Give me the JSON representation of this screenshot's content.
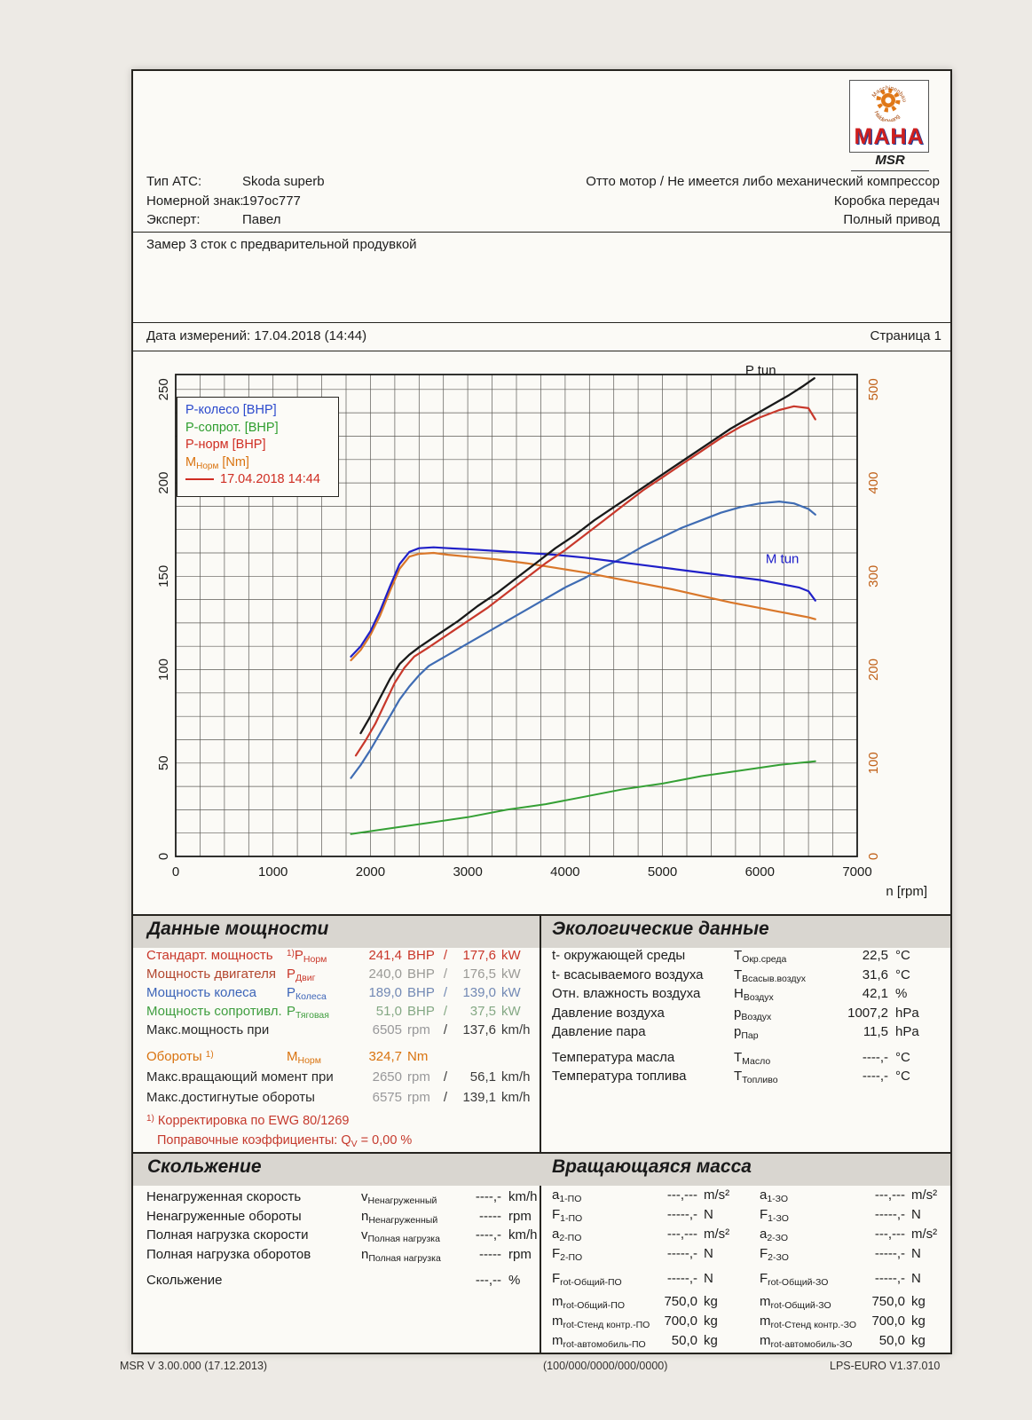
{
  "header": {
    "logo": {
      "brand": "MAHA",
      "sub": "MSR",
      "ring_top": "Maschinenbau",
      "ring_bottom": "Haldenwang"
    },
    "rows": [
      {
        "label": "Тип АТС:",
        "value": "Skoda superb",
        "right": "Отто мотор / Не имеется либо механический компрессор"
      },
      {
        "label": "Номерной знак:",
        "value": "197ос777",
        "right": "Коробка передач"
      },
      {
        "label": "Эксперт:",
        "value": "Павел",
        "right": "Полный привод"
      }
    ],
    "note": "Замер 3 сток с предварительной продувкой",
    "date_line": "Дата измерений: 17.04.2018 (14:44)",
    "page_label": "Страница 1"
  },
  "chart": {
    "legend_entries": [
      {
        "pre": "P-колесо [BHP]",
        "sub": "",
        "post": "",
        "color": "#2b49cc"
      },
      {
        "pre": "P-сопрот. [BHP]",
        "sub": "",
        "post": "",
        "color": "#2e9e2e"
      },
      {
        "pre": "P-норм [BHP]",
        "sub": "",
        "post": "",
        "color": "#cf2d22"
      },
      {
        "pre": "M",
        "sub": "Норм",
        "post": " [Nm]",
        "color": "#d9730f"
      }
    ],
    "legend_date": {
      "text": "17.04.2018 14:44",
      "color": "#cf2d22"
    }
  },
  "chart_data": {
    "type": "line",
    "title": "",
    "xlabel": "n [rpm]",
    "x_ticks": [
      0,
      1000,
      2000,
      3000,
      4000,
      5000,
      6000,
      7000
    ],
    "y_left_ticks": [
      0,
      50,
      100,
      150,
      200,
      250
    ],
    "y_right_ticks": [
      0,
      100,
      200,
      300,
      400,
      500
    ],
    "xlim": [
      0,
      7000
    ],
    "ylim_left": [
      0,
      258
    ],
    "ylim_right": [
      0,
      516
    ],
    "grid_step_x": 250,
    "grid_step_y": 12.5,
    "grid_on": true,
    "right_axis_color": "#c06018",
    "legend_position": "top-left",
    "series": [
      {
        "name": "P-drag",
        "label": "P-сопрот.",
        "unit": "BHP",
        "axis": "left",
        "color": "#35a035",
        "width": 2,
        "points": [
          [
            1800,
            12
          ],
          [
            2200,
            15
          ],
          [
            2600,
            18
          ],
          [
            3000,
            21
          ],
          [
            3400,
            25
          ],
          [
            3800,
            28
          ],
          [
            4200,
            32
          ],
          [
            4600,
            36
          ],
          [
            5000,
            39
          ],
          [
            5400,
            43
          ],
          [
            5800,
            46
          ],
          [
            6200,
            49
          ],
          [
            6570,
            51
          ]
        ]
      },
      {
        "name": "P-wheel",
        "label": "P-колесо",
        "unit": "BHP",
        "axis": "left",
        "color": "#3f6cb3",
        "width": 2.2,
        "points": [
          [
            1800,
            42
          ],
          [
            1900,
            49
          ],
          [
            2000,
            57
          ],
          [
            2100,
            66
          ],
          [
            2200,
            75
          ],
          [
            2300,
            84
          ],
          [
            2400,
            91
          ],
          [
            2500,
            97
          ],
          [
            2600,
            102
          ],
          [
            2800,
            108
          ],
          [
            3000,
            114
          ],
          [
            3200,
            120
          ],
          [
            3400,
            126
          ],
          [
            3600,
            132
          ],
          [
            3800,
            138
          ],
          [
            4000,
            144
          ],
          [
            4200,
            149
          ],
          [
            4400,
            155
          ],
          [
            4600,
            160
          ],
          [
            4800,
            166
          ],
          [
            5000,
            171
          ],
          [
            5200,
            176
          ],
          [
            5400,
            180
          ],
          [
            5600,
            184
          ],
          [
            5800,
            187
          ],
          [
            6000,
            189
          ],
          [
            6200,
            190
          ],
          [
            6350,
            189
          ],
          [
            6500,
            186
          ],
          [
            6570,
            183
          ]
        ]
      },
      {
        "name": "M-norm",
        "label": "M Норм",
        "unit": "Nm",
        "axis": "right",
        "color": "#d9772a",
        "width": 2.2,
        "points": [
          [
            1800,
            210
          ],
          [
            1900,
            221
          ],
          [
            2000,
            237
          ],
          [
            2100,
            258
          ],
          [
            2200,
            284
          ],
          [
            2300,
            308
          ],
          [
            2400,
            321
          ],
          [
            2500,
            324
          ],
          [
            2650,
            325
          ],
          [
            2800,
            323
          ],
          [
            3000,
            321
          ],
          [
            3300,
            318
          ],
          [
            3600,
            314
          ],
          [
            3900,
            309
          ],
          [
            4200,
            304
          ],
          [
            4500,
            298
          ],
          [
            4800,
            292
          ],
          [
            5100,
            286
          ],
          [
            5400,
            279
          ],
          [
            5700,
            272
          ],
          [
            6000,
            266
          ],
          [
            6200,
            262
          ],
          [
            6400,
            258
          ],
          [
            6500,
            256
          ],
          [
            6570,
            254
          ]
        ]
      },
      {
        "name": "M-tun",
        "label": "M tun",
        "unit": "Nm",
        "axis": "right",
        "color": "#2020c8",
        "width": 2.2,
        "points": [
          [
            1800,
            214
          ],
          [
            1900,
            225
          ],
          [
            2000,
            241
          ],
          [
            2100,
            263
          ],
          [
            2200,
            289
          ],
          [
            2300,
            313
          ],
          [
            2400,
            326
          ],
          [
            2500,
            330
          ],
          [
            2650,
            331
          ],
          [
            2800,
            330
          ],
          [
            3000,
            329
          ],
          [
            3300,
            327
          ],
          [
            3600,
            325
          ],
          [
            3900,
            323
          ],
          [
            4200,
            320
          ],
          [
            4500,
            316
          ],
          [
            4800,
            312
          ],
          [
            5100,
            308
          ],
          [
            5400,
            304
          ],
          [
            5700,
            300
          ],
          [
            6000,
            296
          ],
          [
            6200,
            292
          ],
          [
            6400,
            288
          ],
          [
            6500,
            284
          ],
          [
            6570,
            274
          ]
        ]
      },
      {
        "name": "P-norm",
        "label": "P-норм",
        "unit": "BHP",
        "axis": "left",
        "color": "#c8382b",
        "width": 2.2,
        "points": [
          [
            1850,
            54
          ],
          [
            1950,
            62
          ],
          [
            2050,
            71
          ],
          [
            2150,
            82
          ],
          [
            2250,
            93
          ],
          [
            2350,
            101
          ],
          [
            2450,
            107
          ],
          [
            2600,
            112
          ],
          [
            2800,
            119
          ],
          [
            3000,
            126
          ],
          [
            3200,
            133
          ],
          [
            3400,
            141
          ],
          [
            3600,
            149
          ],
          [
            3800,
            157
          ],
          [
            4000,
            164
          ],
          [
            4200,
            172
          ],
          [
            4400,
            180
          ],
          [
            4600,
            188
          ],
          [
            4800,
            196
          ],
          [
            5000,
            203
          ],
          [
            5200,
            210
          ],
          [
            5400,
            217
          ],
          [
            5600,
            224
          ],
          [
            5800,
            230
          ],
          [
            6000,
            235
          ],
          [
            6200,
            239
          ],
          [
            6350,
            241
          ],
          [
            6500,
            240
          ],
          [
            6570,
            234
          ]
        ]
      },
      {
        "name": "P-tun",
        "label": "P tun",
        "unit": "BHP",
        "axis": "left",
        "color": "#191919",
        "width": 2.3,
        "points": [
          [
            1900,
            66
          ],
          [
            2000,
            75
          ],
          [
            2100,
            85
          ],
          [
            2200,
            95
          ],
          [
            2300,
            103
          ],
          [
            2400,
            108
          ],
          [
            2500,
            112
          ],
          [
            2700,
            119
          ],
          [
            2900,
            126
          ],
          [
            3100,
            134
          ],
          [
            3300,
            141
          ],
          [
            3500,
            149
          ],
          [
            3700,
            157
          ],
          [
            3900,
            165
          ],
          [
            4100,
            172
          ],
          [
            4300,
            180
          ],
          [
            4500,
            187
          ],
          [
            4700,
            194
          ],
          [
            4900,
            201
          ],
          [
            5100,
            208
          ],
          [
            5300,
            215
          ],
          [
            5500,
            222
          ],
          [
            5700,
            229
          ],
          [
            5900,
            235
          ],
          [
            6100,
            241
          ],
          [
            6300,
            247
          ],
          [
            6450,
            252
          ],
          [
            6560,
            256
          ]
        ]
      }
    ],
    "annotations": [
      {
        "text": "P tun",
        "x": 5850,
        "y": 258,
        "axis": "left",
        "color": "#191919"
      },
      {
        "text": "M tun",
        "x": 6060,
        "y": 157,
        "axis": "left",
        "color": "#1b1bc8"
      }
    ]
  },
  "power": {
    "title": "Данные мощности",
    "rows": [
      {
        "label": "Стандарт. мощность",
        "label_color": "#c9372a",
        "sym_sup": "1)",
        "sym": "P",
        "sym_sub": "Норм",
        "sym_color": "#c9372a",
        "val1": "241,4",
        "unit1": "BHP",
        "slash": "/",
        "val2": "177,6",
        "unit2": "kW",
        "val1_color": "#c9372a",
        "val2_color": "#c9372a"
      },
      {
        "label": "Мощность двигателя",
        "label_color": "#b2462e",
        "sym": "P",
        "sym_sub": "Двиг",
        "sym_color": "#c9372a",
        "val1": "240,0",
        "unit1": "BHP",
        "slash": "/",
        "val2": "176,5",
        "unit2": "kW",
        "val1_color": "#9a9a96",
        "val2_color": "#9a9a96"
      },
      {
        "label": "Мощность колеса",
        "label_color": "#3c64b8",
        "sym": "P",
        "sym_sub": "Колеса",
        "sym_color": "#3c64b8",
        "val1": "189,0",
        "unit1": "BHP",
        "slash": "/",
        "val2": "139,0",
        "unit2": "kW",
        "val1_color": "#7289b4",
        "val2_color": "#7289b4"
      },
      {
        "label": "Мощность сопротивл.",
        "label_color": "#3f9e3f",
        "sym": "P",
        "sym_sub": "Тяговая",
        "sym_color": "#3f9e3f",
        "val1": "51,0",
        "unit1": "BHP",
        "slash": "/",
        "val2": "37,5",
        "unit2": "kW",
        "val1_color": "#84a884",
        "val2_color": "#84a884"
      },
      {
        "label": "Макс.мощность при",
        "label_color": "#2a2a2a",
        "val1": "6505",
        "unit1": "rpm",
        "slash": "/",
        "val2": "137,6",
        "unit2": "km/h",
        "val1_color": "#98989a",
        "val2_color": "#3a3a3a"
      },
      {
        "label": "Обороты",
        "label_sup": "1)",
        "label_color": "#d9730f",
        "sym": "M",
        "sym_sub": "Норм",
        "sym_color": "#d9730f",
        "val1": "324,7",
        "unit1": "Nm",
        "val1_color": "#d9730f",
        "mt": "9px"
      },
      {
        "label": "Макс.вращающий момент при",
        "label_color": "#2a2a2a",
        "val1": "2650",
        "unit1": "rpm",
        "slash": "/",
        "val2": "56,1",
        "unit2": "km/h",
        "val1_color": "#98989a",
        "val2_color": "#3a3a3a",
        "mt": "2px"
      },
      {
        "label": "Макс.достигнутые обороты",
        "label_color": "#2a2a2a",
        "val1": "6575",
        "unit1": "rpm",
        "slash": "/",
        "val2": "139,1",
        "unit2": "km/h",
        "val1_color": "#98989a",
        "val2_color": "#3a3a3a",
        "mt": "2px"
      }
    ],
    "footnote1_sup": "1)",
    "footnote1": " Корректировка по EWG 80/1269",
    "footnote2_pre": "Поправочные коэффициенты: Q",
    "footnote2_sub": "V",
    "footnote2_post": " =   0,00 %"
  },
  "env": {
    "title": "Экологические данные",
    "rows": [
      {
        "label": "t- окружающей среды",
        "sym": "T",
        "sym_sub": "Окр.среда",
        "value": "22,5",
        "unit": "°C"
      },
      {
        "label": "t- всасываемого воздуха",
        "sym": "T",
        "sym_sub": "Всасыв.воздух",
        "value": "31,6",
        "unit": "°C"
      },
      {
        "label": "Отн. влажность воздуха",
        "sym": "H",
        "sym_sub": "Воздух",
        "value": "42,1",
        "unit": "%"
      },
      {
        "label": "Давление воздуха",
        "sym": "p",
        "sym_sub": "Воздух",
        "value": "1007,2",
        "unit": "hPa"
      },
      {
        "label": "Давление пара",
        "sym": "p",
        "sym_sub": "Пар",
        "value": "11,5",
        "unit": "hPa"
      },
      {
        "label": "Температура масла",
        "sym": "T",
        "sym_sub": "Масло",
        "value": "----,-",
        "unit": "°C",
        "mt": "7px"
      },
      {
        "label": "Температура топлива",
        "sym": "T",
        "sym_sub": "Топливо",
        "value": "----,-",
        "unit": "°C"
      }
    ]
  },
  "slip": {
    "title": "Скольжение",
    "rows": [
      {
        "label": "Ненагруженная  скорость",
        "sym": "v",
        "sym_sub": "Ненагруженный",
        "value": "----,-",
        "unit": "km/h"
      },
      {
        "label": "Ненагруженные  обороты",
        "sym": "n",
        "sym_sub": "Ненагруженный",
        "value": "-----",
        "unit": "rpm"
      },
      {
        "label": "Полная нагрузка скорости",
        "sym": "v",
        "sym_sub": "Полная нагрузка",
        "value": "----,-",
        "unit": "km/h"
      },
      {
        "label": "Полная нагрузка оборотов",
        "sym": "n",
        "sym_sub": "Полная нагрузка",
        "value": "-----",
        "unit": "rpm"
      },
      {
        "label": "Скольжение",
        "value": "---,--",
        "unit": "%",
        "mt": "8px"
      }
    ]
  },
  "mass": {
    "title": "Вращающаяся масса",
    "col_a": [
      {
        "sym": "a",
        "sym_sub": "1-ПО",
        "value": "---,---",
        "unit": "m/s²"
      },
      {
        "sym": "F",
        "sym_sub": "1-ПО",
        "value": "-----,-",
        "unit": "N"
      },
      {
        "sym": "a",
        "sym_sub": "2-ПО",
        "value": "---,---",
        "unit": "m/s²"
      },
      {
        "sym": "F",
        "sym_sub": "2-ПО",
        "value": "-----,-",
        "unit": "N"
      },
      {
        "sym": "F",
        "sym_sub": "rot-Общий-ПО",
        "value": "-----,-",
        "unit": "N",
        "mt": "6px"
      },
      {
        "sym": "m",
        "sym_sub": "rot-Общий-ПО",
        "value": "750,0",
        "unit": "kg",
        "mt": "4px"
      },
      {
        "sym": "m",
        "sym_sub": "rot-Стенд контр.-ПО",
        "value": "700,0",
        "unit": "kg"
      },
      {
        "sym": "m",
        "sym_sub": "rot-автомобиль-ПО",
        "value": "50,0",
        "unit": "kg"
      }
    ],
    "col_b": [
      {
        "sym": "a",
        "sym_sub": "1-ЗО",
        "value": "---,---",
        "unit": "m/s²"
      },
      {
        "sym": "F",
        "sym_sub": "1-ЗО",
        "value": "-----,-",
        "unit": "N"
      },
      {
        "sym": "a",
        "sym_sub": "2-ЗО",
        "value": "---,---",
        "unit": "m/s²"
      },
      {
        "sym": "F",
        "sym_sub": "2-ЗО",
        "value": "-----,-",
        "unit": "N"
      },
      {
        "sym": "F",
        "sym_sub": "rot-Общий-ЗО",
        "value": "-----,-",
        "unit": "N",
        "mt": "6px"
      },
      {
        "sym": "m",
        "sym_sub": "rot-Общий-ЗО",
        "value": "750,0",
        "unit": "kg",
        "mt": "4px"
      },
      {
        "sym": "m",
        "sym_sub": "rot-Стенд контр.-ЗО",
        "value": "700,0",
        "unit": "kg"
      },
      {
        "sym": "m",
        "sym_sub": "rot-автомобиль-ЗО",
        "value": "50,0",
        "unit": "kg"
      }
    ]
  },
  "footer": {
    "left": "MSR V 3.00.000 (17.12.2013)",
    "center": "(100/000/0000/000/0000)",
    "right": "LPS-EURO V1.37.010"
  }
}
